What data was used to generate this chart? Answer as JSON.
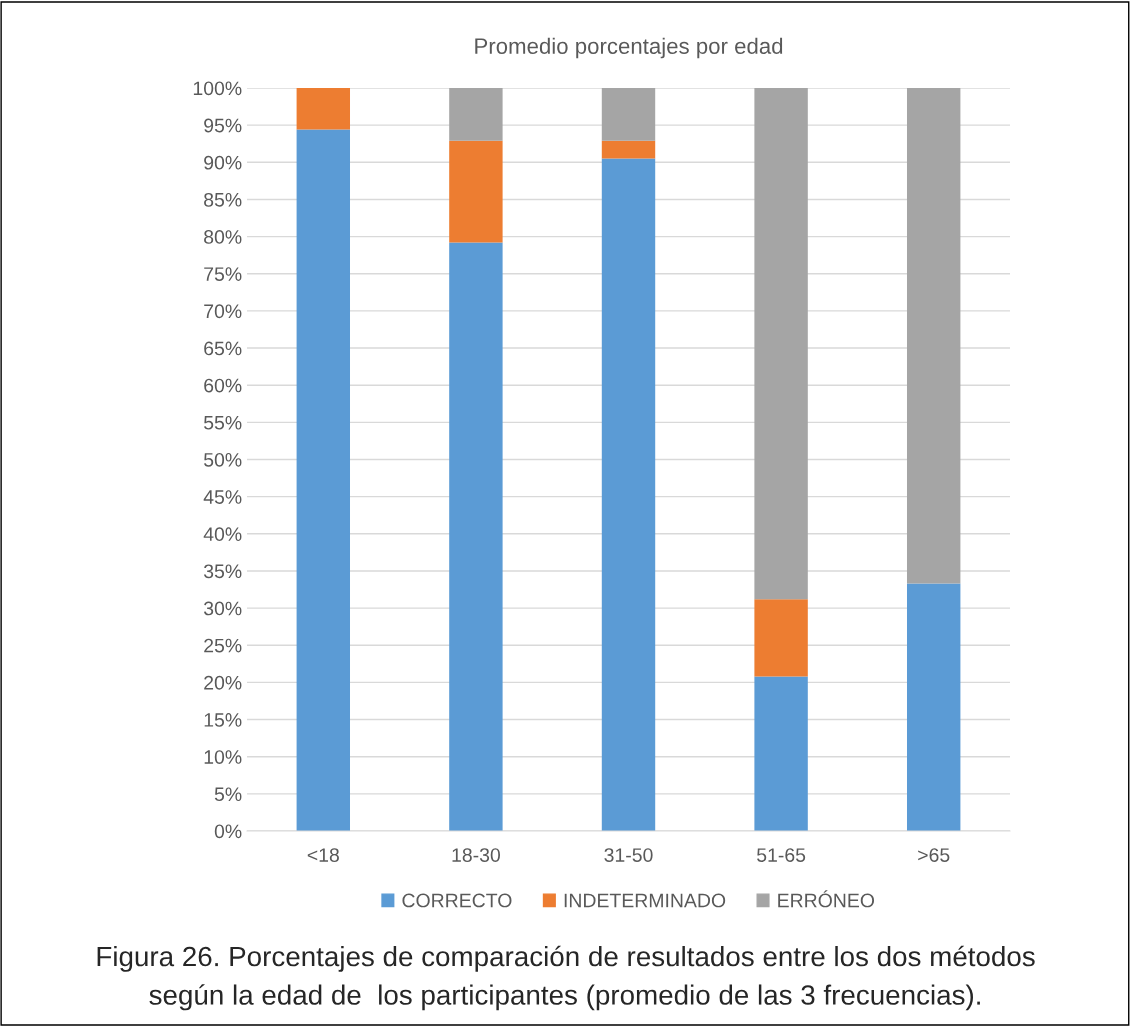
{
  "chart_data": {
    "type": "bar",
    "title": "Promedio porcentajes por edad",
    "stacked": true,
    "categories": [
      "<18",
      "18-30",
      "31-50",
      "51-65",
      ">65"
    ],
    "series": [
      {
        "name": "CORRECTO",
        "color": "#5b9bd5",
        "values": [
          94.4,
          79.2,
          90.5,
          20.8,
          33.3
        ]
      },
      {
        "name": "INDETERMINADO",
        "color": "#ed7d31",
        "values": [
          5.6,
          13.7,
          2.4,
          10.4,
          0
        ]
      },
      {
        "name": "ERRÓNEO",
        "color": "#a5a5a5",
        "values": [
          0,
          7.1,
          7.1,
          68.8,
          66.7
        ]
      }
    ],
    "ylim": [
      0,
      100
    ],
    "yticks": [
      {
        "value": 0,
        "label": "0%"
      },
      {
        "value": 5,
        "label": "5%"
      },
      {
        "value": 10,
        "label": "10%"
      },
      {
        "value": 15,
        "label": "15%"
      },
      {
        "value": 20,
        "label": "20%"
      },
      {
        "value": 25,
        "label": "25%"
      },
      {
        "value": 30,
        "label": "30%"
      },
      {
        "value": 35,
        "label": "35%"
      },
      {
        "value": 40,
        "label": "40%"
      },
      {
        "value": 45,
        "label": "45%"
      },
      {
        "value": 50,
        "label": "50%"
      },
      {
        "value": 55,
        "label": "55%"
      },
      {
        "value": 60,
        "label": "60%"
      },
      {
        "value": 65,
        "label": "65%"
      },
      {
        "value": 70,
        "label": "70%"
      },
      {
        "value": 75,
        "label": "75%"
      },
      {
        "value": 80,
        "label": "80%"
      },
      {
        "value": 85,
        "label": "85%"
      },
      {
        "value": 90,
        "label": "90%"
      },
      {
        "value": 95,
        "label": "95%"
      },
      {
        "value": 100,
        "label": "100%"
      }
    ],
    "grid": "y",
    "legend": "bottom",
    "annotations": [
      "Figura 26. Porcentajes de comparación de resultados entre los dos métodos\nsegún la edad de  los participantes (promedio de las 3 frecuencias)."
    ]
  }
}
